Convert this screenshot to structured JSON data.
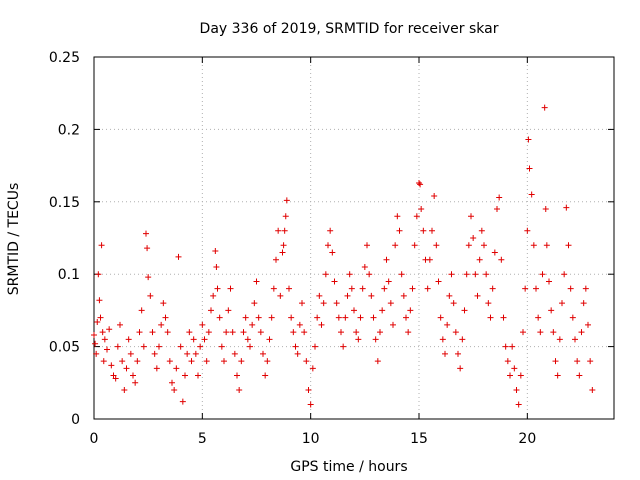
{
  "chart_data": {
    "type": "scatter",
    "title": "Day 336 of 2019, SRMTID for receiver skar",
    "xlabel": "GPS time / hours",
    "ylabel": "SRMTID / TECUs",
    "xlim": [
      0,
      24
    ],
    "ylim": [
      0,
      0.25
    ],
    "xticks": [
      0,
      5,
      10,
      15,
      20
    ],
    "xtick_labels": [
      "0",
      "5",
      "10",
      "15",
      "20"
    ],
    "yticks": [
      0,
      0.05,
      0.1,
      0.15,
      0.2,
      0.25
    ],
    "ytick_labels": [
      "0",
      "0.05",
      "0.1",
      "0.15",
      "0.2",
      "0.25"
    ],
    "grid": true,
    "marker": "+",
    "color": "#e00000",
    "series": [
      {
        "name": "SRMTID",
        "points": [
          [
            0.0,
            0.058
          ],
          [
            0.05,
            0.052
          ],
          [
            0.1,
            0.045
          ],
          [
            0.15,
            0.067
          ],
          [
            0.2,
            0.1
          ],
          [
            0.25,
            0.082
          ],
          [
            0.3,
            0.07
          ],
          [
            0.35,
            0.12
          ],
          [
            0.4,
            0.06
          ],
          [
            0.45,
            0.04
          ],
          [
            0.5,
            0.055
          ],
          [
            0.6,
            0.048
          ],
          [
            0.7,
            0.062
          ],
          [
            0.8,
            0.037
          ],
          [
            0.9,
            0.03
          ],
          [
            1.0,
            0.028
          ],
          [
            1.1,
            0.05
          ],
          [
            1.2,
            0.065
          ],
          [
            1.3,
            0.04
          ],
          [
            1.4,
            0.02
          ],
          [
            1.5,
            0.035
          ],
          [
            1.6,
            0.055
          ],
          [
            1.7,
            0.045
          ],
          [
            1.8,
            0.03
          ],
          [
            1.9,
            0.025
          ],
          [
            2.0,
            0.04
          ],
          [
            2.1,
            0.06
          ],
          [
            2.2,
            0.075
          ],
          [
            2.3,
            0.05
          ],
          [
            2.4,
            0.128
          ],
          [
            2.45,
            0.118
          ],
          [
            2.5,
            0.098
          ],
          [
            2.6,
            0.085
          ],
          [
            2.7,
            0.06
          ],
          [
            2.8,
            0.045
          ],
          [
            2.9,
            0.035
          ],
          [
            3.0,
            0.05
          ],
          [
            3.1,
            0.065
          ],
          [
            3.2,
            0.08
          ],
          [
            3.3,
            0.07
          ],
          [
            3.4,
            0.06
          ],
          [
            3.5,
            0.04
          ],
          [
            3.6,
            0.025
          ],
          [
            3.7,
            0.02
          ],
          [
            3.8,
            0.035
          ],
          [
            3.9,
            0.112
          ],
          [
            4.0,
            0.05
          ],
          [
            4.1,
            0.012
          ],
          [
            4.2,
            0.03
          ],
          [
            4.3,
            0.045
          ],
          [
            4.4,
            0.06
          ],
          [
            4.5,
            0.04
          ],
          [
            4.6,
            0.055
          ],
          [
            4.7,
            0.045
          ],
          [
            4.8,
            0.03
          ],
          [
            4.9,
            0.05
          ],
          [
            5.0,
            0.065
          ],
          [
            5.1,
            0.055
          ],
          [
            5.2,
            0.04
          ],
          [
            5.3,
            0.06
          ],
          [
            5.4,
            0.075
          ],
          [
            5.5,
            0.085
          ],
          [
            5.6,
            0.116
          ],
          [
            5.65,
            0.105
          ],
          [
            5.7,
            0.09
          ],
          [
            5.8,
            0.07
          ],
          [
            5.9,
            0.05
          ],
          [
            6.0,
            0.04
          ],
          [
            6.1,
            0.06
          ],
          [
            6.2,
            0.075
          ],
          [
            6.3,
            0.09
          ],
          [
            6.4,
            0.06
          ],
          [
            6.5,
            0.045
          ],
          [
            6.6,
            0.03
          ],
          [
            6.7,
            0.02
          ],
          [
            6.8,
            0.04
          ],
          [
            6.9,
            0.06
          ],
          [
            7.0,
            0.07
          ],
          [
            7.1,
            0.055
          ],
          [
            7.2,
            0.05
          ],
          [
            7.3,
            0.065
          ],
          [
            7.4,
            0.08
          ],
          [
            7.5,
            0.095
          ],
          [
            7.6,
            0.07
          ],
          [
            7.7,
            0.06
          ],
          [
            7.8,
            0.045
          ],
          [
            7.9,
            0.03
          ],
          [
            8.0,
            0.04
          ],
          [
            8.1,
            0.055
          ],
          [
            8.2,
            0.07
          ],
          [
            8.3,
            0.09
          ],
          [
            8.4,
            0.11
          ],
          [
            8.5,
            0.13
          ],
          [
            8.6,
            0.085
          ],
          [
            8.7,
            0.115
          ],
          [
            8.75,
            0.12
          ],
          [
            8.8,
            0.13
          ],
          [
            8.85,
            0.14
          ],
          [
            8.9,
            0.151
          ],
          [
            9.0,
            0.09
          ],
          [
            9.1,
            0.07
          ],
          [
            9.2,
            0.06
          ],
          [
            9.3,
            0.05
          ],
          [
            9.4,
            0.045
          ],
          [
            9.5,
            0.065
          ],
          [
            9.6,
            0.08
          ],
          [
            9.7,
            0.06
          ],
          [
            9.8,
            0.04
          ],
          [
            9.9,
            0.02
          ],
          [
            10.0,
            0.01
          ],
          [
            10.1,
            0.035
          ],
          [
            10.2,
            0.05
          ],
          [
            10.3,
            0.07
          ],
          [
            10.4,
            0.085
          ],
          [
            10.5,
            0.065
          ],
          [
            10.6,
            0.08
          ],
          [
            10.7,
            0.1
          ],
          [
            10.8,
            0.12
          ],
          [
            10.9,
            0.13
          ],
          [
            11.0,
            0.115
          ],
          [
            11.1,
            0.095
          ],
          [
            11.2,
            0.08
          ],
          [
            11.3,
            0.07
          ],
          [
            11.4,
            0.06
          ],
          [
            11.5,
            0.05
          ],
          [
            11.6,
            0.07
          ],
          [
            11.7,
            0.085
          ],
          [
            11.8,
            0.1
          ],
          [
            11.9,
            0.09
          ],
          [
            12.0,
            0.075
          ],
          [
            12.1,
            0.06
          ],
          [
            12.2,
            0.055
          ],
          [
            12.3,
            0.07
          ],
          [
            12.4,
            0.09
          ],
          [
            12.5,
            0.105
          ],
          [
            12.6,
            0.12
          ],
          [
            12.7,
            0.1
          ],
          [
            12.8,
            0.085
          ],
          [
            12.9,
            0.07
          ],
          [
            13.0,
            0.055
          ],
          [
            13.1,
            0.04
          ],
          [
            13.2,
            0.06
          ],
          [
            13.3,
            0.075
          ],
          [
            13.4,
            0.09
          ],
          [
            13.5,
            0.11
          ],
          [
            13.6,
            0.095
          ],
          [
            13.7,
            0.08
          ],
          [
            13.8,
            0.065
          ],
          [
            13.9,
            0.12
          ],
          [
            14.0,
            0.14
          ],
          [
            14.1,
            0.13
          ],
          [
            14.2,
            0.1
          ],
          [
            14.3,
            0.085
          ],
          [
            14.4,
            0.07
          ],
          [
            14.5,
            0.06
          ],
          [
            14.6,
            0.075
          ],
          [
            14.7,
            0.09
          ],
          [
            14.8,
            0.12
          ],
          [
            14.9,
            0.14
          ],
          [
            15.0,
            0.163
          ],
          [
            15.05,
            0.162
          ],
          [
            15.1,
            0.145
          ],
          [
            15.2,
            0.13
          ],
          [
            15.3,
            0.11
          ],
          [
            15.4,
            0.09
          ],
          [
            15.5,
            0.11
          ],
          [
            15.6,
            0.13
          ],
          [
            15.7,
            0.154
          ],
          [
            15.8,
            0.12
          ],
          [
            15.9,
            0.095
          ],
          [
            16.0,
            0.07
          ],
          [
            16.1,
            0.055
          ],
          [
            16.2,
            0.045
          ],
          [
            16.3,
            0.065
          ],
          [
            16.4,
            0.085
          ],
          [
            16.5,
            0.1
          ],
          [
            16.6,
            0.08
          ],
          [
            16.7,
            0.06
          ],
          [
            16.8,
            0.045
          ],
          [
            16.9,
            0.035
          ],
          [
            17.0,
            0.055
          ],
          [
            17.1,
            0.075
          ],
          [
            17.2,
            0.1
          ],
          [
            17.3,
            0.12
          ],
          [
            17.4,
            0.14
          ],
          [
            17.5,
            0.125
          ],
          [
            17.6,
            0.1
          ],
          [
            17.7,
            0.085
          ],
          [
            17.8,
            0.11
          ],
          [
            17.9,
            0.13
          ],
          [
            18.0,
            0.12
          ],
          [
            18.1,
            0.1
          ],
          [
            18.2,
            0.08
          ],
          [
            18.3,
            0.07
          ],
          [
            18.4,
            0.09
          ],
          [
            18.5,
            0.115
          ],
          [
            18.6,
            0.145
          ],
          [
            18.7,
            0.153
          ],
          [
            18.8,
            0.11
          ],
          [
            18.9,
            0.07
          ],
          [
            19.0,
            0.05
          ],
          [
            19.1,
            0.04
          ],
          [
            19.2,
            0.03
          ],
          [
            19.3,
            0.05
          ],
          [
            19.4,
            0.035
          ],
          [
            19.5,
            0.02
          ],
          [
            19.6,
            0.01
          ],
          [
            19.7,
            0.03
          ],
          [
            19.8,
            0.06
          ],
          [
            19.9,
            0.09
          ],
          [
            20.0,
            0.13
          ],
          [
            20.05,
            0.193
          ],
          [
            20.1,
            0.173
          ],
          [
            20.2,
            0.155
          ],
          [
            20.3,
            0.12
          ],
          [
            20.4,
            0.09
          ],
          [
            20.5,
            0.07
          ],
          [
            20.6,
            0.06
          ],
          [
            20.7,
            0.1
          ],
          [
            20.8,
            0.215
          ],
          [
            20.85,
            0.145
          ],
          [
            20.9,
            0.12
          ],
          [
            21.0,
            0.095
          ],
          [
            21.1,
            0.075
          ],
          [
            21.2,
            0.06
          ],
          [
            21.3,
            0.04
          ],
          [
            21.4,
            0.03
          ],
          [
            21.5,
            0.055
          ],
          [
            21.6,
            0.08
          ],
          [
            21.7,
            0.1
          ],
          [
            21.8,
            0.146
          ],
          [
            21.9,
            0.12
          ],
          [
            22.0,
            0.09
          ],
          [
            22.1,
            0.07
          ],
          [
            22.2,
            0.055
          ],
          [
            22.3,
            0.04
          ],
          [
            22.4,
            0.03
          ],
          [
            22.5,
            0.06
          ],
          [
            22.6,
            0.08
          ],
          [
            22.7,
            0.09
          ],
          [
            22.8,
            0.065
          ],
          [
            22.9,
            0.04
          ],
          [
            23.0,
            0.02
          ]
        ]
      }
    ]
  }
}
